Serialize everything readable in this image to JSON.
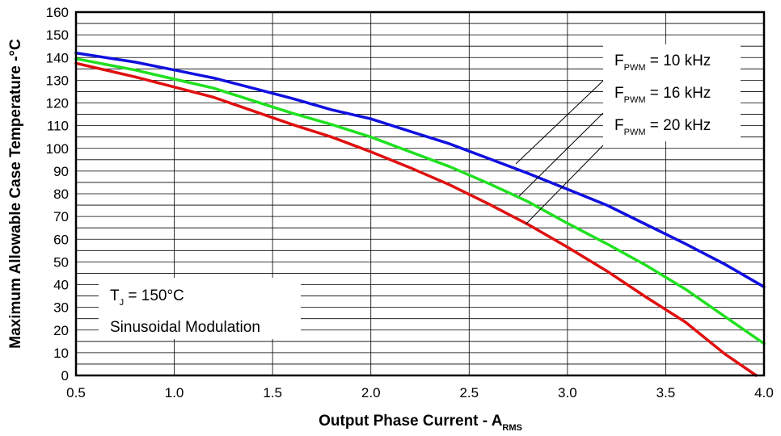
{
  "chart_data": {
    "type": "line",
    "xlabel": {
      "main": "Output Phase Current - A",
      "sub": "RMS"
    },
    "ylabel": "Maximum Allowable Case Temperature -°C",
    "xlim": [
      0.5,
      4.0
    ],
    "ylim": [
      0,
      160
    ],
    "x_ticks": [
      "0.5",
      "1.0",
      "1.5",
      "2.0",
      "2.5",
      "3.0",
      "3.5",
      "4.0"
    ],
    "y_ticks": [
      "0",
      "10",
      "20",
      "30",
      "40",
      "50",
      "60",
      "70",
      "80",
      "90",
      "100",
      "110",
      "120",
      "130",
      "140",
      "150",
      "160"
    ],
    "x_tick_values": [
      0.5,
      1.0,
      1.5,
      2.0,
      2.5,
      3.0,
      3.5,
      4.0
    ],
    "y_tick_values": [
      0,
      10,
      20,
      30,
      40,
      50,
      60,
      70,
      80,
      90,
      100,
      110,
      120,
      130,
      140,
      150,
      160
    ],
    "grid": {
      "x_major": true,
      "y_minor": true
    },
    "series": [
      {
        "name": "F_PWM = 10 kHz",
        "label_main": "F",
        "label_sub": "PWM",
        "label_rest": " = 10 kHz",
        "color": "#1010e0",
        "x": [
          0.5,
          0.8,
          1.0,
          1.2,
          1.4,
          1.6,
          1.8,
          2.0,
          2.2,
          2.4,
          2.6,
          2.8,
          3.0,
          3.2,
          3.4,
          3.6,
          3.8,
          4.0
        ],
        "y": [
          142,
          138,
          134.5,
          131,
          126.5,
          122,
          117,
          113,
          107.5,
          102,
          95.5,
          89,
          82,
          75,
          66.5,
          58,
          49,
          39
        ]
      },
      {
        "name": "F_PWM = 16 kHz",
        "label_main": "F",
        "label_sub": "PWM",
        "label_rest": " = 16 kHz",
        "color": "#20e020",
        "x": [
          0.5,
          0.8,
          1.0,
          1.2,
          1.4,
          1.6,
          1.8,
          2.0,
          2.2,
          2.4,
          2.6,
          2.8,
          3.0,
          3.2,
          3.4,
          3.6,
          3.8,
          4.0
        ],
        "y": [
          139.5,
          134.5,
          130.5,
          126.5,
          121,
          115.5,
          110.5,
          105,
          98.5,
          92,
          84.5,
          76.5,
          67,
          58,
          48.5,
          38,
          26,
          14
        ]
      },
      {
        "name": "F_PWM = 20 kHz",
        "label_main": "F",
        "label_sub": "PWM",
        "label_rest": " = 20 kHz",
        "color": "#e01010",
        "x": [
          0.5,
          0.8,
          1.0,
          1.2,
          1.4,
          1.6,
          1.8,
          2.0,
          2.2,
          2.4,
          2.6,
          2.8,
          3.0,
          3.2,
          3.4,
          3.6,
          3.8,
          3.96
        ],
        "y": [
          137.5,
          131.5,
          127,
          122.5,
          116.5,
          110.5,
          105,
          98.5,
          91.5,
          84,
          75.5,
          66.5,
          56.5,
          46,
          34.5,
          23.5,
          9.5,
          0
        ]
      }
    ],
    "legend": {
      "placement": "top-right"
    },
    "annotation": {
      "line1_main": "T",
      "line1_sub": "J",
      "line1_rest": " = 150°C",
      "line2": "Sinusoidal Modulation"
    }
  }
}
